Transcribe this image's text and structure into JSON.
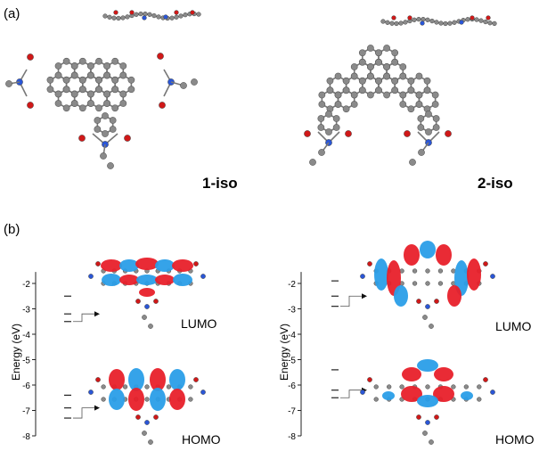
{
  "panel_a": {
    "label": "(a)",
    "molecules": [
      {
        "name": "1-iso"
      },
      {
        "name": "2-iso"
      }
    ]
  },
  "panel_b": {
    "label": "(b)",
    "axis_label": "Energy (eV)",
    "yticks": [
      "-2",
      "-3",
      "-4",
      "-5",
      "-6",
      "-7",
      "-8"
    ],
    "orbital_labels": {
      "lumo": "LUMO",
      "homo": "HOMO"
    }
  },
  "chart_data": [
    {
      "type": "energy-level diagram",
      "molecule": "1-iso",
      "ylabel": "Energy (eV)",
      "ylim": [
        -8,
        -1.5
      ],
      "levels": [
        -2.5,
        -3.2,
        -3.5,
        -6.4,
        -6.9,
        -7.3
      ],
      "highlighted": {
        "LUMO": -3.2,
        "HOMO": -6.9
      }
    },
    {
      "type": "energy-level diagram",
      "molecule": "2-iso",
      "ylabel": "Energy (eV)",
      "ylim": [
        -8,
        -1.5
      ],
      "levels": [
        -1.9,
        -2.5,
        -2.9,
        -5.4,
        -6.2,
        -6.5
      ],
      "highlighted": {
        "LUMO": -2.5,
        "HOMO": -6.2
      }
    }
  ],
  "colors": {
    "carbon": "#8a8a8a",
    "oxygen": "#d01818",
    "nitrogen": "#2a56d6",
    "lobe_pos": "#e8202a",
    "lobe_neg": "#2a9ee8"
  }
}
